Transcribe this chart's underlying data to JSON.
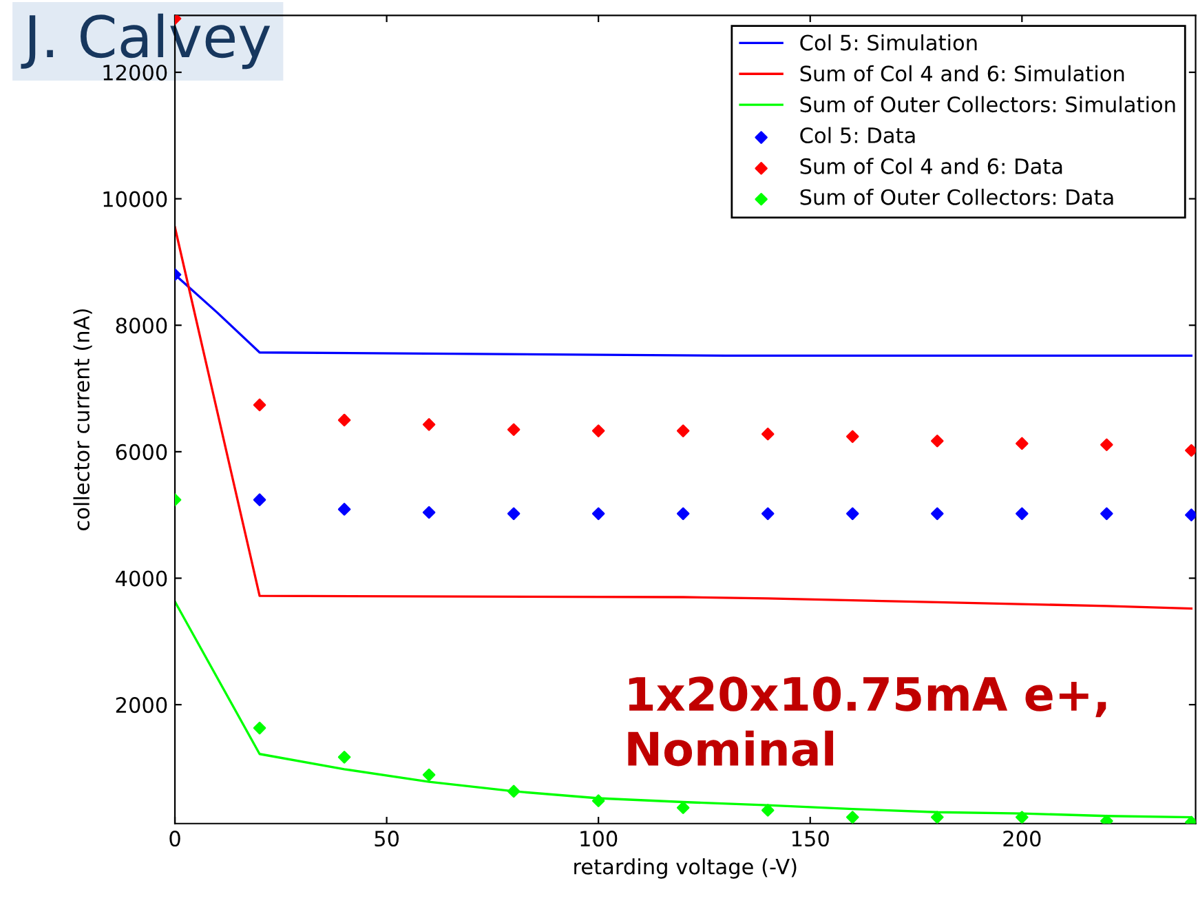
{
  "chart_data": {
    "type": "line",
    "xlabel": "retarding voltage (-V)",
    "ylabel": "collector current (nA)",
    "xlim": [
      0,
      241
    ],
    "xticks": [
      0,
      50,
      100,
      150,
      200
    ],
    "ylim": [
      120,
      12900
    ],
    "yticks": [
      2000,
      4000,
      6000,
      8000,
      10000,
      12000
    ],
    "grid": false,
    "legend": "top right",
    "annotations": [
      "1x20x10.75mA e+,\nNominal",
      "J. Calvey"
    ],
    "series": [
      {
        "name": "Col 5: Simulation",
        "color": "#0000ff",
        "x": [
          0,
          10,
          20,
          130,
          240
        ],
        "values": [
          8800,
          8200,
          7570,
          7520,
          7520
        ]
      },
      {
        "name": "Sum of Col 4 and 6: Simulation",
        "color": "#ff0000",
        "x": [
          0,
          20,
          120,
          140,
          180,
          220,
          240
        ],
        "values": [
          9550,
          3720,
          3700,
          3680,
          3620,
          3560,
          3520
        ]
      },
      {
        "name": "Sum of Outer Collectors: Simulation",
        "color": "#00ff00",
        "x": [
          0,
          20,
          40,
          60,
          80,
          100,
          120,
          140,
          160,
          180,
          200,
          220,
          240
        ],
        "values": [
          3630,
          1220,
          980,
          780,
          630,
          520,
          460,
          410,
          350,
          300,
          280,
          240,
          220
        ]
      },
      {
        "name": "Col 5: Data",
        "type": "scatter",
        "marker": "diamond",
        "color": "#0000ff",
        "x": [
          0,
          20,
          40,
          60,
          80,
          100,
          120,
          140,
          160,
          180,
          200,
          220,
          240
        ],
        "values": [
          8800,
          5240,
          5090,
          5040,
          5020,
          5020,
          5020,
          5020,
          5020,
          5020,
          5020,
          5020,
          5000
        ]
      },
      {
        "name": "Sum of Col 4 and 6: Data",
        "type": "scatter",
        "marker": "diamond",
        "color": "#ff0000",
        "x": [
          0,
          20,
          40,
          60,
          80,
          100,
          120,
          140,
          160,
          180,
          200,
          220,
          240
        ],
        "values": [
          12850,
          6740,
          6500,
          6430,
          6350,
          6330,
          6330,
          6280,
          6240,
          6170,
          6130,
          6110,
          6020
        ]
      },
      {
        "name": "Sum of Outer Collectors: Data",
        "type": "scatter",
        "marker": "diamond",
        "color": "#00ff00",
        "x": [
          0,
          20,
          40,
          60,
          80,
          100,
          120,
          140,
          160,
          180,
          200,
          220,
          240
        ],
        "values": [
          5240,
          1630,
          1170,
          890,
          630,
          480,
          370,
          330,
          220,
          220,
          220,
          160,
          140
        ]
      }
    ]
  }
}
